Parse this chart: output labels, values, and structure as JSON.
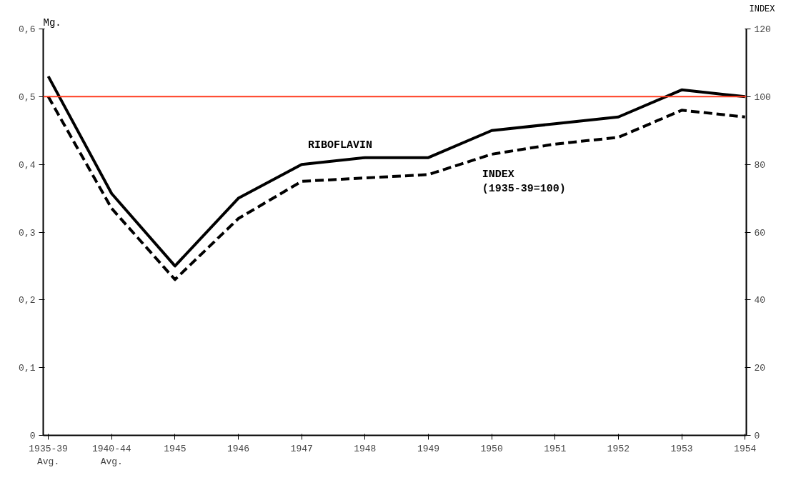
{
  "chart_data": {
    "type": "line",
    "categories": [
      "1935-39\nAvg.",
      "1940-44\nAvg.",
      "1945",
      "1946",
      "1947",
      "1948",
      "1949",
      "1950",
      "1951",
      "1952",
      "1953",
      "1954"
    ],
    "series": [
      {
        "name": "RIBOFLAVIN",
        "color": "#000000",
        "line_style": "solid",
        "values": [
          0.53,
          0.357,
          0.25,
          0.35,
          0.4,
          0.41,
          0.41,
          0.45,
          0.46,
          0.47,
          0.51,
          0.5
        ]
      },
      {
        "name": "INDEX\n(1935-39=100)",
        "color": "#000000",
        "line_style": "dashed",
        "axis": "y2",
        "values": [
          100,
          67,
          46,
          64,
          75,
          76,
          77,
          83,
          86,
          88,
          96,
          94
        ]
      }
    ],
    "ylabel": "Mg.",
    "y2label": "INDEX",
    "ylim": [
      0,
      0.6
    ],
    "yticks": [
      {
        "value": 0,
        "label": "0"
      },
      {
        "value": 0.1,
        "label": "0,1"
      },
      {
        "value": 0.2,
        "label": "0,2"
      },
      {
        "value": 0.3,
        "label": "0,3"
      },
      {
        "value": 0.4,
        "label": "0,4"
      },
      {
        "value": 0.5,
        "label": "0,5"
      },
      {
        "value": 0.6,
        "label": "0,6"
      }
    ],
    "y2lim": [
      0,
      120
    ],
    "y2ticks": [
      0,
      20,
      40,
      60,
      80,
      100,
      120
    ],
    "ref_lines": [
      {
        "axis": "y",
        "value": 0.5,
        "color": "#ff3b1f"
      }
    ],
    "grid": false,
    "legend": false,
    "marker": "none"
  }
}
